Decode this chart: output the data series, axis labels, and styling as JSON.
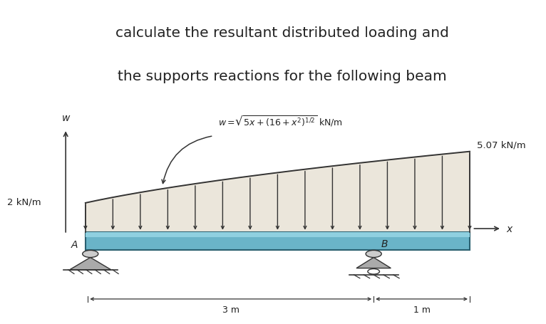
{
  "title_line1": "calculate the resultant distributed loading and",
  "title_line2": "the supports reactions for the following beam",
  "title_fontsize": 14.5,
  "bg_color": "#ccc5b5",
  "beam_color_top": "#8fd0e0",
  "beam_color": "#6ab4c8",
  "label_2kn": "2 kN/m",
  "label_507kn": "5.07 kN/m",
  "label_w": "w",
  "label_x": "x",
  "label_A": "A",
  "label_B": "B",
  "label_3m": "3 m",
  "label_1m": "1 m",
  "n_arrows": 15,
  "arrow_color": "#333333",
  "beam_edge_color": "#2a6070",
  "line_color": "#333333"
}
